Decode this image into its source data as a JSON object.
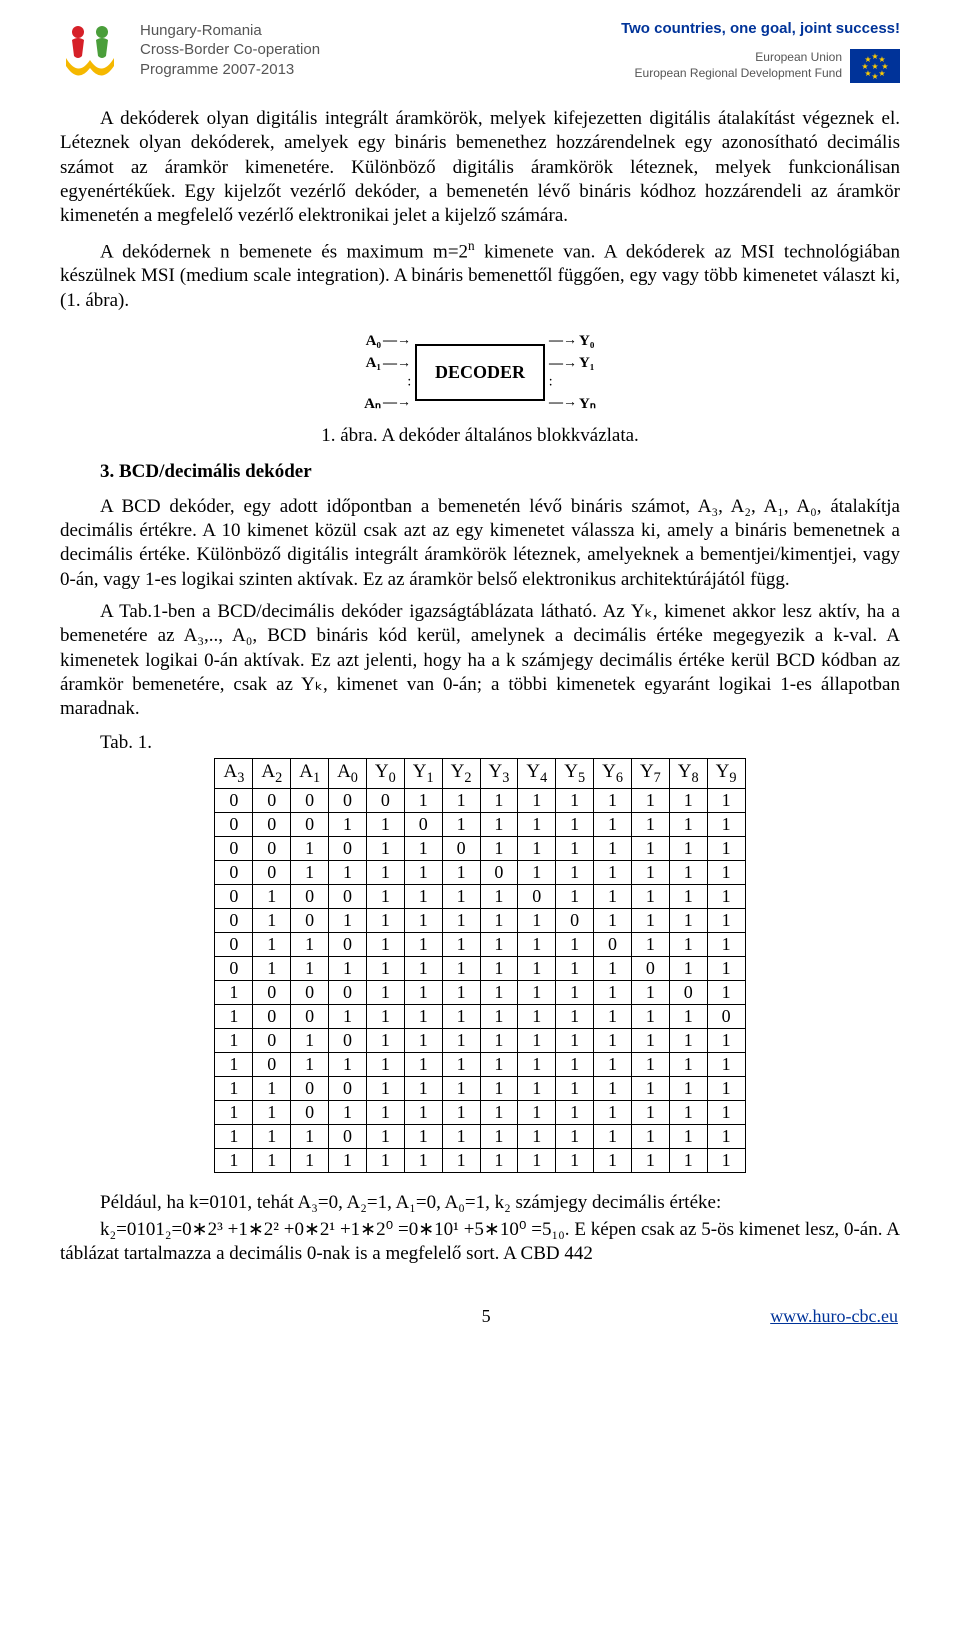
{
  "header": {
    "programme_line1": "Hungary-Romania",
    "programme_line2": "Cross-Border Co-operation",
    "programme_line3": "Programme 2007-2013",
    "tagline": "Two countries, one goal, joint success!",
    "eu_line1": "European Union",
    "eu_line2": "European Regional Development Fund",
    "logo_colors": {
      "red": "#d62028",
      "green": "#4a9e3a",
      "yellow": "#f5b800"
    },
    "eu_flag_bg": "#003399",
    "eu_flag_stars": "#ffcc00"
  },
  "paragraphs": {
    "p1": "A dekóderek olyan digitális integrált áramkörök, melyek kifejezetten digitális átalakítást végeznek el. Léteznek olyan dekóderek, amelyek egy bináris bemenethez hozzárendelnek egy azonosítható decimális számot az áramkör kimenetére. Különböző digitális áramkörök léteznek, melyek funkcionálisan egyenértékűek. Egy kijelzőt vezérlő dekóder, a bemenetén lévő bináris kódhoz hozzárendeli az áramkör kimenetén a megfelelő vezérlő elektronikai jelet a kijelző számára.",
    "p2a": "A dekódernek n bemenete és maximum m=2",
    "p2_sup": "n",
    "p2b": " kimenete van. A dekóderek az MSI technológiában készülnek MSI (medium scale integration). A bináris bemenettől függően, egy vagy több kimenetet választ ki, (1. ábra).",
    "fig_caption": "1. ábra. A dekóder általános blokkvázlata.",
    "section3_title": "3. BCD/decimális dekóder",
    "p3": "A BCD dekóder, egy adott időpontban a bemenetén lévő bináris számot, A₃, A₂, A₁, A₀, átalakítja decimális értékre. A 10 kimenet közül csak azt az egy kimenetet válassza ki, amely a bináris bemenetnek a decimális értéke. Különböző digitális integrált áramkörök léteznek, amelyeknek a bementjei/kimentjei, vagy 0-án, vagy 1-es logikai szinten aktívak. Ez az áramkör belső elektronikus architektúrájától függ.",
    "p4": "A Tab.1-ben a BCD/decimális dekóder igazságtáblázata látható. Az Yₖ, kimenet akkor lesz aktív, ha a bemenetére az A₃,.., A₀, BCD bináris kód kerül, amelynek a decimális értéke megegyezik a k-val. A kimenetek logikai 0-án aktívak. Ez azt jelenti, hogy ha a k számjegy decimális értéke kerül BCD kódban az áramkör bemenetére, csak az Yₖ, kimenet van 0-án; a többi kimenetek egyaránt logikai 1-es állapotban maradnak.",
    "tab_label": "Tab. 1.",
    "p5_pre": "Például, ha k=0101, tehát A₃=0, A₂=1, A₁=0, A₀=1, k₂ számjegy decimális értéke:",
    "p5_formula": "k₂=0101₂=0∗2³ +1∗2² +0∗2¹ +1∗2⁰ =0∗10¹ +5∗10⁰ =5₁₀.  E képen csak az 5-ös kimenet lesz, 0-án. A táblázat tartalmazza a decimális 0-nak is a megfelelő sort. A CBD 442"
  },
  "decoder_diagram": {
    "label": "DECODER",
    "inputs": [
      "A₀",
      "A₁",
      "Aₙ"
    ],
    "outputs": [
      "Y₀",
      "Y₁",
      "Yₙ"
    ],
    "border_color": "#000000",
    "font_weight": "bold"
  },
  "truth_table": {
    "type": "table",
    "columns": [
      "A3",
      "A2",
      "A1",
      "A0",
      "Y0",
      "Y1",
      "Y2",
      "Y3",
      "Y4",
      "Y5",
      "Y6",
      "Y7",
      "Y8",
      "Y9"
    ],
    "rows": [
      [
        0,
        0,
        0,
        0,
        0,
        1,
        1,
        1,
        1,
        1,
        1,
        1,
        1,
        1
      ],
      [
        0,
        0,
        0,
        1,
        1,
        0,
        1,
        1,
        1,
        1,
        1,
        1,
        1,
        1
      ],
      [
        0,
        0,
        1,
        0,
        1,
        1,
        0,
        1,
        1,
        1,
        1,
        1,
        1,
        1
      ],
      [
        0,
        0,
        1,
        1,
        1,
        1,
        1,
        0,
        1,
        1,
        1,
        1,
        1,
        1
      ],
      [
        0,
        1,
        0,
        0,
        1,
        1,
        1,
        1,
        0,
        1,
        1,
        1,
        1,
        1
      ],
      [
        0,
        1,
        0,
        1,
        1,
        1,
        1,
        1,
        1,
        0,
        1,
        1,
        1,
        1
      ],
      [
        0,
        1,
        1,
        0,
        1,
        1,
        1,
        1,
        1,
        1,
        0,
        1,
        1,
        1
      ],
      [
        0,
        1,
        1,
        1,
        1,
        1,
        1,
        1,
        1,
        1,
        1,
        0,
        1,
        1
      ],
      [
        1,
        0,
        0,
        0,
        1,
        1,
        1,
        1,
        1,
        1,
        1,
        1,
        0,
        1
      ],
      [
        1,
        0,
        0,
        1,
        1,
        1,
        1,
        1,
        1,
        1,
        1,
        1,
        1,
        0
      ],
      [
        1,
        0,
        1,
        0,
        1,
        1,
        1,
        1,
        1,
        1,
        1,
        1,
        1,
        1
      ],
      [
        1,
        0,
        1,
        1,
        1,
        1,
        1,
        1,
        1,
        1,
        1,
        1,
        1,
        1
      ],
      [
        1,
        1,
        0,
        0,
        1,
        1,
        1,
        1,
        1,
        1,
        1,
        1,
        1,
        1
      ],
      [
        1,
        1,
        0,
        1,
        1,
        1,
        1,
        1,
        1,
        1,
        1,
        1,
        1,
        1
      ],
      [
        1,
        1,
        1,
        0,
        1,
        1,
        1,
        1,
        1,
        1,
        1,
        1,
        1,
        1
      ],
      [
        1,
        1,
        1,
        1,
        1,
        1,
        1,
        1,
        1,
        1,
        1,
        1,
        1,
        1
      ]
    ],
    "border_color": "#000000",
    "cell_padding": "1px 10px",
    "font_size": 18
  },
  "footer": {
    "page_number": "5",
    "url": "www.huro-cbc.eu",
    "url_color": "#003399"
  }
}
